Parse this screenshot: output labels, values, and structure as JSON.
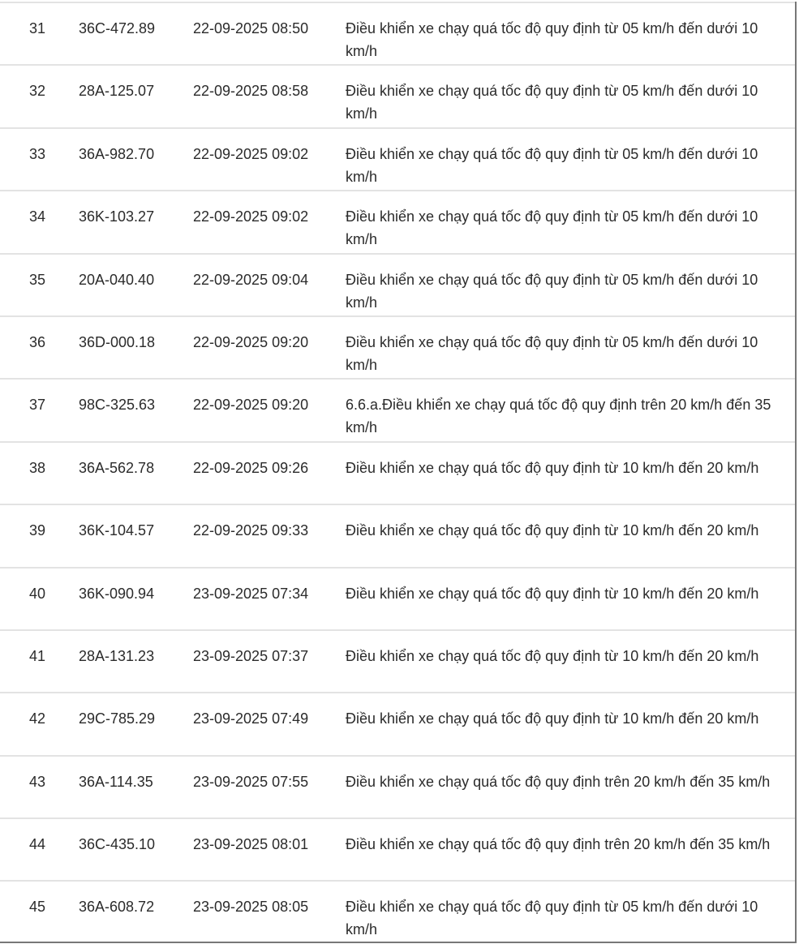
{
  "rows": [
    {
      "no": "31",
      "plate": "36C-472.89",
      "time": "22-09-2025 08:50",
      "desc": "Điều khiển xe chạy quá tốc độ quy định từ 05 km/h đến dưới 10 km/h"
    },
    {
      "no": "32",
      "plate": "28A-125.07",
      "time": "22-09-2025 08:58",
      "desc": "Điều khiển xe chạy quá tốc độ quy định từ 05 km/h đến dưới 10 km/h"
    },
    {
      "no": "33",
      "plate": "36A-982.70",
      "time": "22-09-2025 09:02",
      "desc": "Điều khiển xe chạy quá tốc độ quy định từ 05 km/h đến dưới 10 km/h"
    },
    {
      "no": "34",
      "plate": "36K-103.27",
      "time": "22-09-2025 09:02",
      "desc": "Điều khiển xe chạy quá tốc độ quy định từ 05 km/h đến dưới 10 km/h"
    },
    {
      "no": "35",
      "plate": "20A-040.40",
      "time": "22-09-2025 09:04",
      "desc": "Điều khiển xe chạy quá tốc độ quy định từ 05 km/h đến dưới 10 km/h"
    },
    {
      "no": "36",
      "plate": "36D-000.18",
      "time": "22-09-2025 09:20",
      "desc": "Điều khiển xe chạy quá tốc độ quy định từ 05 km/h đến dưới 10 km/h"
    },
    {
      "no": "37",
      "plate": "98C-325.63",
      "time": "22-09-2025 09:20",
      "desc": "6.6.a.Điều khiển xe chạy quá tốc độ quy định trên 20 km/h đến 35 km/h"
    },
    {
      "no": "38",
      "plate": "36A-562.78",
      "time": "22-09-2025 09:26",
      "desc": "Điều khiển xe chạy quá tốc độ quy định từ 10 km/h đến 20 km/h"
    },
    {
      "no": "39",
      "plate": "36K-104.57",
      "time": "22-09-2025 09:33",
      "desc": "Điều khiển xe chạy quá tốc độ quy định từ 10 km/h đến 20 km/h"
    },
    {
      "no": "40",
      "plate": "36K-090.94",
      "time": "23-09-2025 07:34",
      "desc": "Điều khiển xe chạy quá tốc độ quy định từ 10 km/h đến 20 km/h"
    },
    {
      "no": "41",
      "plate": "28A-131.23",
      "time": "23-09-2025 07:37",
      "desc": "Điều khiển xe chạy quá tốc độ quy định từ 10 km/h đến 20 km/h"
    },
    {
      "no": "42",
      "plate": "29C-785.29",
      "time": "23-09-2025 07:49",
      "desc": "Điều khiển xe chạy quá tốc độ quy định từ 10 km/h đến 20 km/h"
    },
    {
      "no": "43",
      "plate": "36A-114.35",
      "time": "23-09-2025 07:55",
      "desc": "Điều khiển xe chạy quá tốc độ quy định trên 20 km/h đến 35 km/h"
    },
    {
      "no": "44",
      "plate": "36C-435.10",
      "time": "23-09-2025 08:01",
      "desc": "Điều khiển xe chạy quá tốc độ quy định trên 20 km/h đến 35 km/h"
    },
    {
      "no": "45",
      "plate": "36A-608.72",
      "time": "23-09-2025 08:05",
      "desc": "Điều khiển xe chạy quá tốc độ quy định từ 05 km/h đến dưới 10 km/h"
    }
  ]
}
